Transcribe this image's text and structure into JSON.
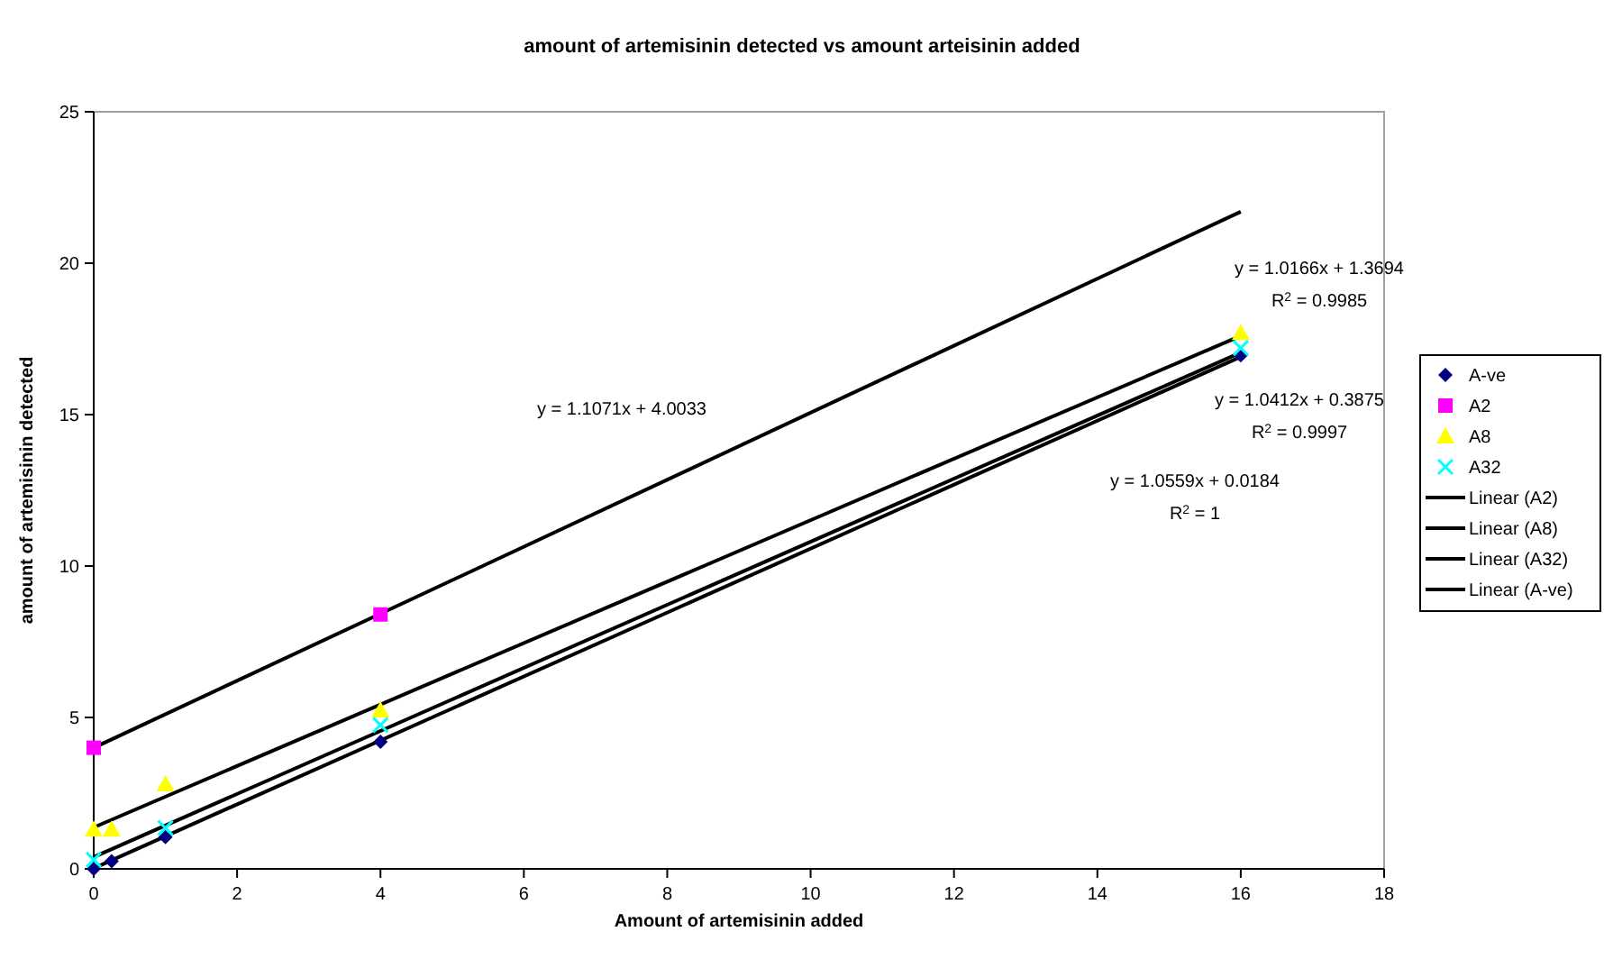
{
  "chart_data": {
    "type": "scatter",
    "title": "amount of artemisinin detected vs amount arteisinin added",
    "xlabel": "Amount of artemisinin added",
    "ylabel": "amount of artemisinin detected",
    "xlim": [
      0,
      18
    ],
    "xticks": [
      0,
      2,
      4,
      6,
      8,
      10,
      12,
      14,
      16,
      18
    ],
    "ylim": [
      0,
      25
    ],
    "yticks": [
      0,
      5,
      10,
      15,
      20,
      25
    ],
    "grid": false,
    "legend": "right",
    "series": [
      {
        "name": "A-ve",
        "color": "#000080",
        "marker": "diamond",
        "x": [
          0,
          0.25,
          1,
          4,
          16
        ],
        "values": [
          0,
          0.25,
          1.05,
          4.2,
          16.96
        ]
      },
      {
        "name": "A2",
        "color": "#ff00ff",
        "marker": "square",
        "x": [
          0,
          4
        ],
        "values": [
          4,
          8.4
        ]
      },
      {
        "name": "A8",
        "color": "#ffff00",
        "marker": "triangle",
        "x": [
          0,
          0.25,
          1,
          4,
          16
        ],
        "values": [
          1.3,
          1.3,
          2.8,
          5.24,
          17.7
        ]
      },
      {
        "name": "A32",
        "color": "#00ffff",
        "marker": "cross",
        "x": [
          0,
          1,
          4,
          16
        ],
        "values": [
          0.3,
          1.35,
          4.75,
          17.2
        ]
      },
      {
        "name": "Linear (A2)",
        "type": "line",
        "color": "#000000",
        "marker": "none",
        "x": [
          0,
          16
        ],
        "values": [
          4,
          21.7
        ]
      },
      {
        "name": "Linear (A8)",
        "type": "line",
        "color": "#000000",
        "marker": "none",
        "x": [
          0,
          16
        ],
        "values": [
          1.37,
          17.6
        ]
      },
      {
        "name": "Linear (A32)",
        "type": "line",
        "color": "#000000",
        "marker": "none",
        "x": [
          0,
          16
        ],
        "values": [
          0.39,
          17.05
        ]
      },
      {
        "name": "Linear (A-ve)",
        "type": "line",
        "color": "#000000",
        "marker": "none",
        "x": [
          0,
          16
        ],
        "values": [
          0.02,
          16.91
        ]
      }
    ],
    "annotations": [
      "y = 1.1071x + 4.0033",
      "y = 1.0166x + 1.3694",
      "R$^{2}$ = 0.9985",
      "y = 1.0412x + 0.3875",
      "R$^{2}$ = 0.9997",
      "y = 1.0559x + 0.0184",
      "R$^{2}$ = 1"
    ]
  }
}
